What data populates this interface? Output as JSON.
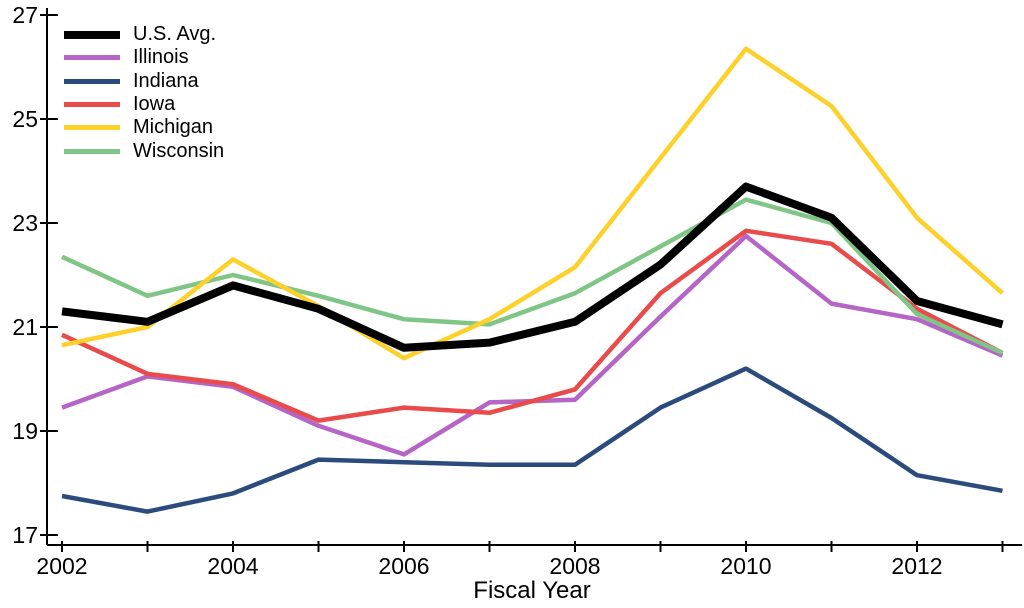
{
  "chart_data": {
    "type": "line",
    "title": "",
    "xlabel": "Fiscal Year",
    "ylabel": "",
    "grid": "off",
    "legend_position": "top-left",
    "xlim": [
      2002,
      2013
    ],
    "ylim": [
      17,
      27
    ],
    "x": [
      2002,
      2003,
      2004,
      2005,
      2006,
      2007,
      2008,
      2009,
      2010,
      2011,
      2012,
      2013
    ],
    "x_ticks_minor": [
      2002,
      2003,
      2004,
      2005,
      2006,
      2007,
      2008,
      2009,
      2010,
      2011,
      2012,
      2013
    ],
    "x_ticks_labeled": [
      2002,
      2004,
      2006,
      2008,
      2010,
      2012
    ],
    "y_ticks": [
      17,
      19,
      21,
      23,
      25,
      27
    ],
    "axis_color": "#000000",
    "series": [
      {
        "name": "U.S. Avg.",
        "color": "#000000",
        "line_width": 8,
        "values": [
          21.3,
          21.1,
          21.8,
          21.35,
          20.6,
          20.7,
          21.1,
          22.2,
          23.7,
          23.1,
          21.5,
          21.05
        ]
      },
      {
        "name": "Illinois",
        "color": "#b565c5",
        "line_width": 4.5,
        "values": [
          19.45,
          20.05,
          19.85,
          19.1,
          18.55,
          19.55,
          19.6,
          21.2,
          22.75,
          21.45,
          21.15,
          20.45
        ]
      },
      {
        "name": "Indiana",
        "color": "#2c4b7d",
        "line_width": 4.5,
        "values": [
          17.75,
          17.45,
          17.8,
          18.45,
          18.4,
          18.35,
          18.35,
          19.45,
          20.2,
          19.25,
          18.15,
          17.85
        ]
      },
      {
        "name": "Iowa",
        "color": "#e94b4b",
        "line_width": 4.5,
        "values": [
          20.85,
          20.1,
          19.9,
          19.2,
          19.45,
          19.35,
          19.8,
          21.65,
          22.85,
          22.6,
          21.35,
          20.5
        ]
      },
      {
        "name": "Michigan",
        "color": "#fdd02a",
        "line_width": 4.5,
        "values": [
          20.65,
          21.0,
          22.3,
          21.4,
          20.4,
          21.15,
          22.15,
          24.25,
          26.35,
          25.25,
          23.1,
          21.65
        ]
      },
      {
        "name": "Wisconsin",
        "color": "#7fc686",
        "line_width": 4.5,
        "values": [
          22.35,
          21.6,
          22.0,
          21.6,
          21.15,
          21.05,
          21.65,
          22.55,
          23.45,
          23.0,
          21.25,
          20.5
        ]
      }
    ],
    "draw_order": [
      2,
      1,
      3,
      5,
      4,
      0
    ]
  }
}
